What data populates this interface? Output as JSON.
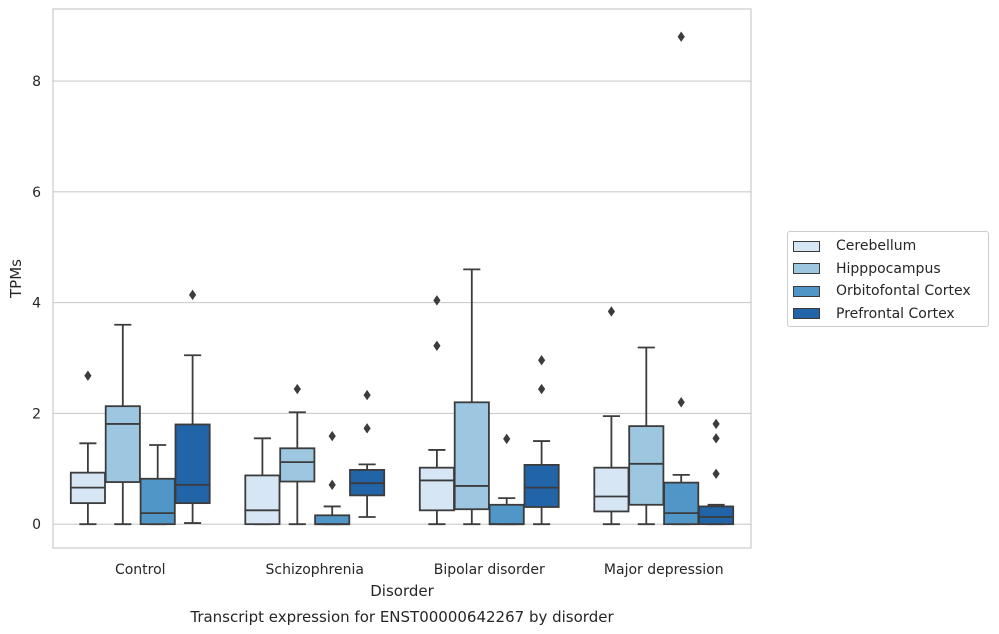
{
  "chart_data": {
    "type": "boxplot",
    "title": "Transcript expression for ENST00000642267 by disorder",
    "xlabel": "Disorder",
    "ylabel": "TPMs",
    "ylim": [
      -0.43,
      9.3
    ],
    "yticks": [
      0,
      2,
      4,
      6,
      8
    ],
    "grid": true,
    "legend_position": "right",
    "categories": [
      "Control",
      "Schizophrenia",
      "Bipolar disorder",
      "Major depression"
    ],
    "series": [
      {
        "name": "Cerebellum",
        "color": "#d6e6f4",
        "boxes": [
          {
            "whislo": 0.0,
            "q1": 0.38,
            "med": 0.66,
            "q3": 0.93,
            "whishi": 1.46,
            "fliers": [
              2.68
            ]
          },
          {
            "whislo": 0.0,
            "q1": 0.0,
            "med": 0.25,
            "q3": 0.88,
            "whishi": 1.55,
            "fliers": []
          },
          {
            "whislo": 0.0,
            "q1": 0.25,
            "med": 0.79,
            "q3": 1.02,
            "whishi": 1.34,
            "fliers": [
              3.22,
              4.04
            ]
          },
          {
            "whislo": 0.0,
            "q1": 0.23,
            "med": 0.5,
            "q3": 1.02,
            "whishi": 1.95,
            "fliers": [
              3.84
            ]
          }
        ]
      },
      {
        "name": "Hipppocampus",
        "color": "#9dc7e0",
        "boxes": [
          {
            "whislo": 0.0,
            "q1": 0.76,
            "med": 1.81,
            "q3": 2.13,
            "whishi": 3.6,
            "fliers": []
          },
          {
            "whislo": 0.0,
            "q1": 0.77,
            "med": 1.12,
            "q3": 1.37,
            "whishi": 2.02,
            "fliers": [
              2.44
            ]
          },
          {
            "whislo": 0.0,
            "q1": 0.27,
            "med": 0.69,
            "q3": 2.2,
            "whishi": 4.6,
            "fliers": []
          },
          {
            "whislo": 0.0,
            "q1": 0.35,
            "med": 1.09,
            "q3": 1.77,
            "whishi": 3.19,
            "fliers": []
          }
        ]
      },
      {
        "name": "Orbitofontal Cortex",
        "color": "#5096c6",
        "boxes": [
          {
            "whislo": 0.0,
            "q1": 0.0,
            "med": 0.2,
            "q3": 0.82,
            "whishi": 1.43,
            "fliers": []
          },
          {
            "whislo": 0.0,
            "q1": 0.0,
            "med": 0.0,
            "q3": 0.16,
            "whishi": 0.32,
            "fliers": [
              0.71,
              1.59
            ]
          },
          {
            "whislo": 0.0,
            "q1": 0.0,
            "med": 0.0,
            "q3": 0.35,
            "whishi": 0.47,
            "fliers": [
              1.54
            ]
          },
          {
            "whislo": 0.0,
            "q1": 0.0,
            "med": 0.2,
            "q3": 0.75,
            "whishi": 0.89,
            "fliers": [
              2.2,
              8.8
            ]
          }
        ]
      },
      {
        "name": "Prefrontal Cortex",
        "color": "#2264a8",
        "boxes": [
          {
            "whislo": 0.02,
            "q1": 0.38,
            "med": 0.71,
            "q3": 1.8,
            "whishi": 3.05,
            "fliers": [
              4.14
            ]
          },
          {
            "whislo": 0.13,
            "q1": 0.52,
            "med": 0.74,
            "q3": 0.98,
            "whishi": 1.08,
            "fliers": [
              1.73,
              2.33
            ]
          },
          {
            "whislo": 0.0,
            "q1": 0.31,
            "med": 0.66,
            "q3": 1.07,
            "whishi": 1.5,
            "fliers": [
              2.44,
              2.96
            ]
          },
          {
            "whislo": 0.0,
            "q1": 0.0,
            "med": 0.13,
            "q3": 0.32,
            "whishi": 0.35,
            "fliers": [
              0.91,
              1.55,
              1.81
            ]
          }
        ]
      }
    ]
  }
}
